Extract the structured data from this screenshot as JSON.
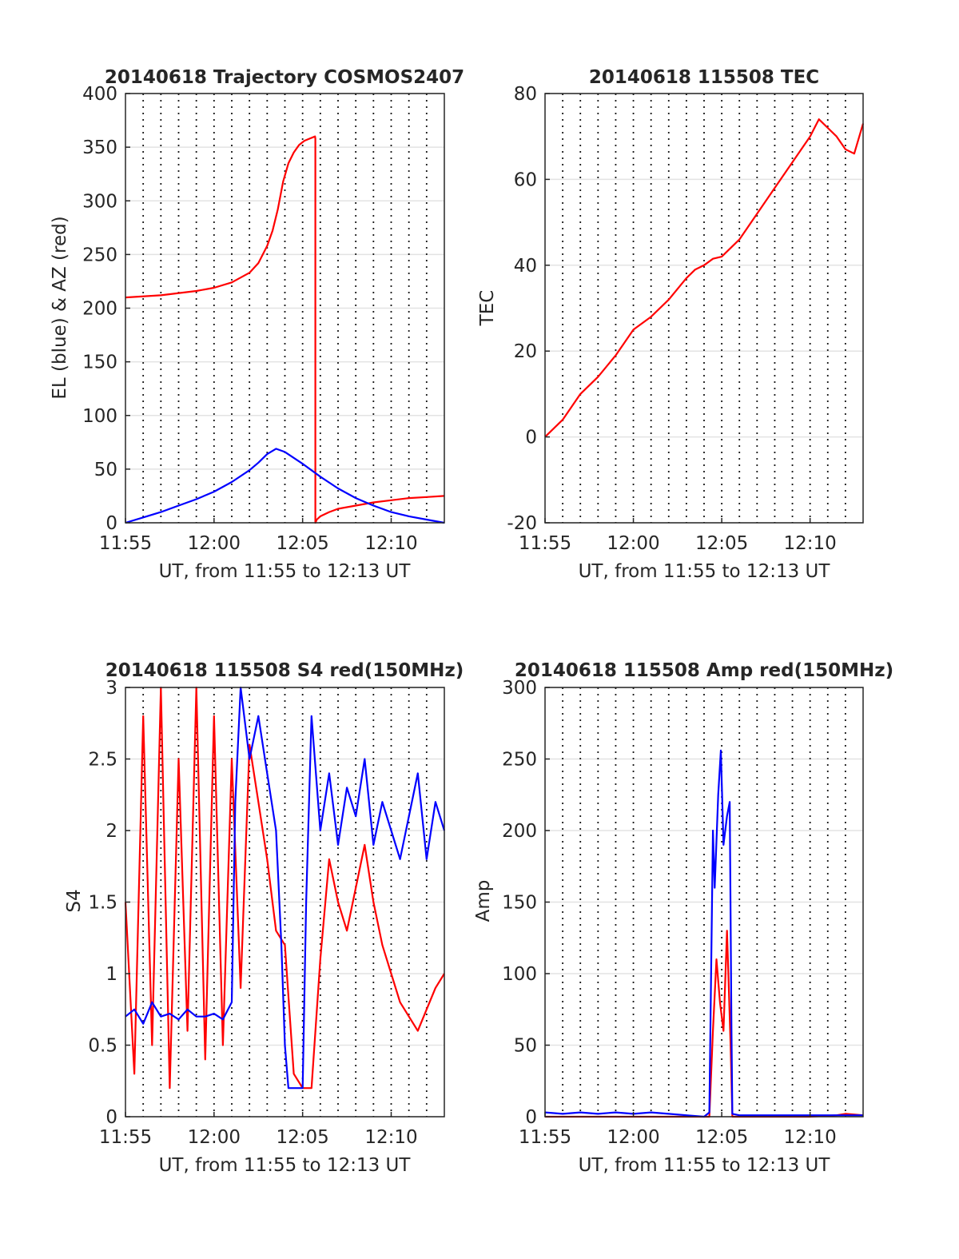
{
  "chart_data": [
    {
      "type": "line",
      "title": "20140618 Trajectory COSMOS2407",
      "xlabel": "UT, from 11:55 to 12:13 UT",
      "ylabel": "EL (blue) & AZ (red)",
      "x_unit": "minutes after 11:55 UT",
      "xlim": [
        0,
        18
      ],
      "ylim": [
        0,
        400
      ],
      "x_ticks": [
        0,
        5,
        10,
        15
      ],
      "x_tick_labels": [
        "11:55",
        "12:00",
        "12:05",
        "12:10"
      ],
      "y_ticks": [
        0,
        50,
        100,
        150,
        200,
        250,
        300,
        350,
        400
      ],
      "grid": true,
      "series": [
        {
          "color": "#ff0000",
          "x": [
            0,
            2,
            4,
            5,
            6,
            7,
            7.5,
            8,
            8.3,
            8.6,
            8.9,
            9.2,
            9.5,
            9.8,
            10.1,
            10.4,
            10.7,
            10.72,
            10.72,
            10.8,
            11,
            11.5,
            12,
            13,
            14,
            15,
            16,
            17,
            18
          ],
          "y": [
            210,
            212,
            216,
            219,
            224,
            233,
            242,
            258,
            272,
            292,
            318,
            335,
            345,
            352,
            356,
            358,
            360,
            358,
            0,
            3,
            6,
            10,
            13,
            16,
            19,
            21,
            23,
            24,
            25
          ]
        },
        {
          "color": "#0000ff",
          "x": [
            0,
            1,
            2,
            3,
            4,
            5,
            6,
            7,
            7.5,
            8,
            8.5,
            9,
            10,
            11,
            12,
            13,
            14,
            15,
            16,
            17,
            18
          ],
          "y": [
            0,
            5,
            10,
            16,
            22,
            29,
            38,
            49,
            56,
            64,
            69,
            66,
            55,
            43,
            32,
            23,
            16,
            10,
            6,
            3,
            0
          ]
        }
      ]
    },
    {
      "type": "line",
      "title": "20140618 115508 TEC",
      "xlabel": "UT, from 11:55 to 12:13 UT",
      "ylabel": "TEC",
      "x_unit": "minutes after 11:55 UT",
      "xlim": [
        0,
        18
      ],
      "ylim": [
        -20,
        80
      ],
      "x_ticks": [
        0,
        5,
        10,
        15
      ],
      "x_tick_labels": [
        "11:55",
        "12:00",
        "12:05",
        "12:10"
      ],
      "y_ticks": [
        -20,
        0,
        20,
        40,
        60,
        80
      ],
      "grid": true,
      "series": [
        {
          "color": "#ff0000",
          "x": [
            0,
            1,
            2,
            3,
            4,
            5,
            6,
            7,
            8,
            8.5,
            9,
            9.5,
            10,
            11,
            12,
            13,
            14,
            15,
            15.5,
            16,
            16.5,
            17,
            17.5,
            18
          ],
          "y": [
            0,
            4,
            10,
            14,
            19,
            25,
            28,
            32,
            37,
            39,
            40,
            41.5,
            42,
            46,
            52,
            58,
            64,
            70,
            74,
            72,
            70,
            67,
            66,
            73
          ]
        }
      ]
    },
    {
      "type": "line",
      "title": "20140618 115508 S4 red(150MHz)",
      "xlabel": "UT, from 11:55 to 12:13 UT",
      "ylabel": "S4",
      "x_unit": "minutes after 11:55 UT",
      "xlim": [
        0,
        18
      ],
      "ylim": [
        0,
        3
      ],
      "x_ticks": [
        0,
        5,
        10,
        15
      ],
      "x_tick_labels": [
        "11:55",
        "12:00",
        "12:05",
        "12:10"
      ],
      "y_ticks": [
        0,
        0.5,
        1,
        1.5,
        2,
        2.5,
        3
      ],
      "y_tick_labels": [
        "0",
        "0.5",
        "1",
        "1.5",
        "2",
        "2.5",
        "3"
      ],
      "grid": true,
      "series": [
        {
          "color": "#ff0000",
          "x": [
            0,
            0.5,
            1,
            1.5,
            2,
            2.5,
            3,
            3.5,
            4,
            4.5,
            5,
            5.5,
            6,
            6.5,
            7,
            7.5,
            8,
            8.5,
            9,
            9.5,
            10,
            10.5,
            11,
            11.5,
            12,
            12.5,
            13,
            13.5,
            14,
            14.5,
            15,
            15.5,
            16,
            16.5,
            17,
            17.5,
            18
          ],
          "y": [
            1.5,
            0.3,
            2.8,
            0.5,
            3.0,
            0.2,
            2.5,
            0.6,
            3.0,
            0.4,
            2.8,
            0.5,
            2.5,
            0.9,
            2.6,
            2.2,
            1.8,
            1.3,
            1.2,
            0.3,
            0.2,
            0.2,
            1.1,
            1.8,
            1.5,
            1.3,
            1.6,
            1.9,
            1.5,
            1.2,
            1.0,
            0.8,
            0.7,
            0.6,
            0.75,
            0.9,
            1.0
          ]
        },
        {
          "color": "#0000ff",
          "x": [
            0,
            0.5,
            1,
            1.5,
            2,
            2.5,
            3,
            3.5,
            4,
            4.5,
            5,
            5.5,
            6,
            6.2,
            6.5,
            7,
            7.5,
            8,
            8.5,
            8.8,
            9,
            9.2,
            9.5,
            10,
            10.2,
            10.5,
            11,
            11.5,
            12,
            12.5,
            13,
            13.5,
            14,
            14.5,
            15,
            15.5,
            16,
            16.5,
            17,
            17.5,
            18
          ],
          "y": [
            0.7,
            0.75,
            0.65,
            0.8,
            0.7,
            0.72,
            0.68,
            0.75,
            0.7,
            0.7,
            0.72,
            0.68,
            0.8,
            2.2,
            3.0,
            2.5,
            2.8,
            2.4,
            2.0,
            1.2,
            0.5,
            0.2,
            0.2,
            0.2,
            1.5,
            2.8,
            2.0,
            2.4,
            1.9,
            2.3,
            2.1,
            2.5,
            1.9,
            2.2,
            2.0,
            1.8,
            2.1,
            2.4,
            1.8,
            2.2,
            2.0
          ]
        }
      ]
    },
    {
      "type": "line",
      "title": "20140618 115508 Amp red(150MHz)",
      "xlabel": "UT, from 11:55 to 12:13 UT",
      "ylabel": "Amp",
      "x_unit": "minutes after 11:55 UT",
      "xlim": [
        0,
        18
      ],
      "ylim": [
        0,
        300
      ],
      "x_ticks": [
        0,
        5,
        10,
        15
      ],
      "x_tick_labels": [
        "11:55",
        "12:00",
        "12:05",
        "12:10"
      ],
      "y_ticks": [
        0,
        50,
        100,
        150,
        200,
        250,
        300
      ],
      "grid": true,
      "series": [
        {
          "color": "#ff0000",
          "x": [
            0,
            5,
            9,
            9.3,
            9.5,
            9.7,
            9.9,
            10.1,
            10.3,
            10.5,
            10.6,
            11,
            15,
            16.5,
            17,
            18
          ],
          "y": [
            0,
            0,
            0,
            0,
            60,
            110,
            80,
            60,
            130,
            50,
            0,
            0,
            0,
            1,
            2,
            1
          ]
        },
        {
          "color": "#0000ff",
          "x": [
            0,
            1,
            2,
            3,
            4,
            5,
            6,
            7,
            8,
            9,
            9.3,
            9.5,
            9.6,
            9.8,
            9.95,
            10.1,
            10.3,
            10.45,
            10.55,
            10.6,
            11,
            12,
            13,
            14,
            15,
            16,
            17,
            18
          ],
          "y": [
            3,
            2,
            3,
            2,
            3,
            2,
            3,
            2,
            1,
            0,
            3,
            200,
            160,
            225,
            256,
            190,
            210,
            220,
            60,
            2,
            1,
            1,
            1,
            1,
            1,
            1,
            1,
            1
          ]
        }
      ]
    }
  ]
}
